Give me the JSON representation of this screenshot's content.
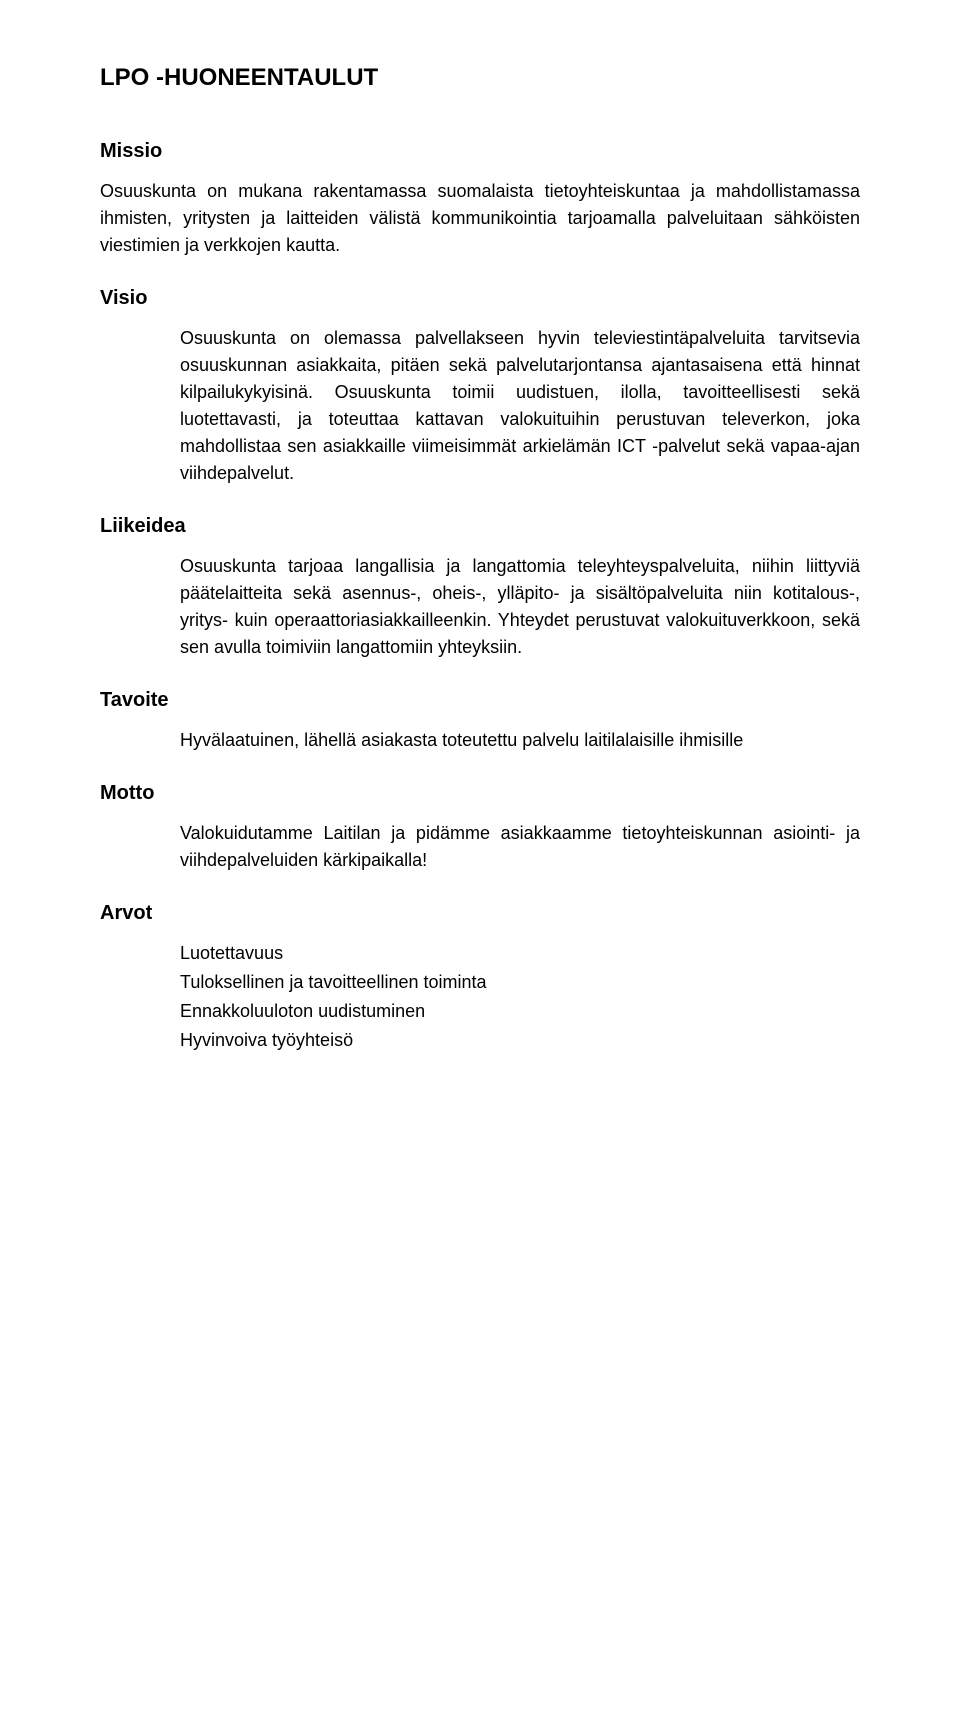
{
  "title": "LPO -HUONEENTAULUT",
  "sections": {
    "missio": {
      "heading": "Missio",
      "p1": "Osuuskunta on mukana rakentamassa suomalaista tietoyhteiskuntaa ja mahdollistamassa ihmisten, yritysten ja laitteiden välistä kommunikointia tarjoamalla palveluitaan sähköisten viestimien ja verkkojen kautta."
    },
    "visio": {
      "heading": "Visio",
      "p1": "Osuuskunta on olemassa palvellakseen hyvin televiestintäpalveluita tarvitsevia osuuskunnan asiakkaita, pitäen sekä palvelutarjontansa ajantasaisena että hinnat kilpailukykyisinä. Osuuskunta toimii uudistuen, ilolla, tavoitteellisesti sekä luotettavasti, ja toteuttaa kattavan valokuituihin perustuvan televerkon, joka mahdollistaa sen asiakkaille viimeisimmät arkielämän ICT -palvelut sekä vapaa-ajan viihdepalvelut."
    },
    "liikeidea": {
      "heading": "Liikeidea",
      "p1": "Osuuskunta tarjoaa langallisia ja langattomia teleyhteyspalveluita, niihin liittyviä päätelaitteita sekä asennus-, oheis-, ylläpito- ja sisältöpalveluita niin kotitalous-, yritys- kuin operaattoriasiakkailleenkin. Yhteydet perustuvat valokuituverkkoon, sekä sen avulla toimiviin langattomiin yhteyksiin."
    },
    "tavoite": {
      "heading": "Tavoite",
      "p1": "Hyvälaatuinen, lähellä asiakasta toteutettu palvelu laitilalaisille ihmisille"
    },
    "motto": {
      "heading": "Motto",
      "p1": "Valokuidutamme Laitilan ja pidämme asiakkaamme tietoyhteiskunnan asiointi- ja viihdepalveluiden kärkipaikalla!"
    },
    "arvot": {
      "heading": "Arvot",
      "items": [
        "Luotettavuus",
        "Tuloksellinen ja tavoitteellinen toiminta",
        "Ennakkoluuloton uudistuminen",
        "Hyvinvoiva työyhteisö"
      ]
    }
  }
}
